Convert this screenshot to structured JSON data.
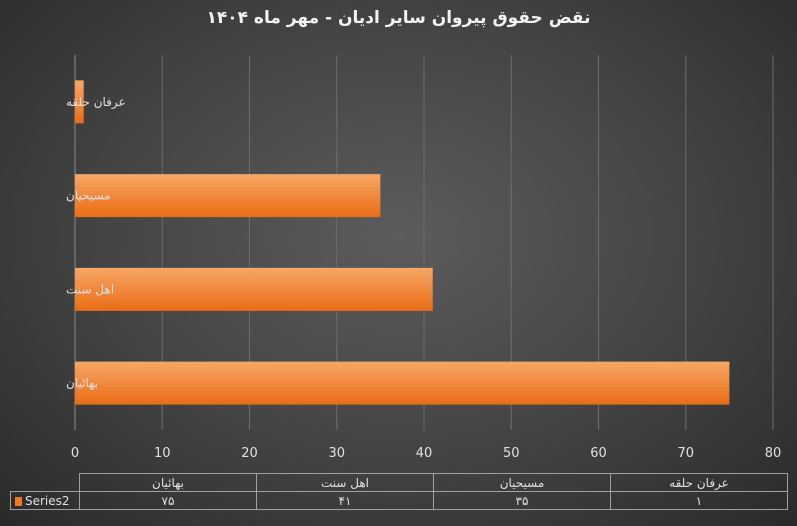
{
  "chart_data": {
    "type": "bar",
    "orientation": "horizontal",
    "title": "نقض حقوق پیروان سایر ادیان - مهر ماه ۱۴۰۴",
    "categories": [
      "عرفان حلقه",
      "مسیحیان",
      "اهل سنت",
      "بهائیان"
    ],
    "series": [
      {
        "name": "Series2",
        "values": [
          1,
          35,
          41,
          75
        ]
      }
    ],
    "xlim": [
      0,
      80
    ],
    "xticks": [
      "0",
      "10",
      "20",
      "30",
      "40",
      "50",
      "60",
      "70",
      "80"
    ],
    "grid": true,
    "legend": "data-table",
    "data_table": {
      "columns": [
        "بهائیان",
        "اهل سنت",
        "مسیحیان",
        "عرفان حلقه"
      ],
      "row_label": "Series2",
      "values": [
        "۷۵",
        "۴۱",
        "۳۵",
        "۱"
      ]
    },
    "colors": {
      "bar": "#f07a20",
      "bar_light": "#f6a15c",
      "grid": "#6c6c6c"
    }
  }
}
